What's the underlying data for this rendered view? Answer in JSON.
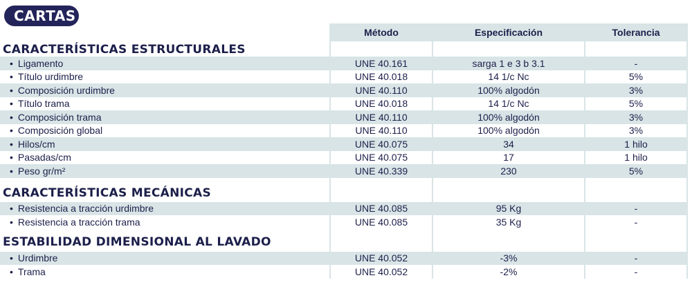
{
  "badge": "CARTAS",
  "headers": {
    "metodo": "Método",
    "especificacion": "Especificación",
    "tolerancia": "Tolerancia"
  },
  "sections": [
    {
      "title": "CARACTERÍSTICAS ESTRUCTURALES",
      "rows": [
        {
          "label": "Ligamento",
          "metodo": "UNE 40.161",
          "especificacion": "sarga 1 e 3 b 3.1",
          "tolerancia": "-"
        },
        {
          "label": "Título urdimbre",
          "metodo": "UNE 40.018",
          "especificacion": "14 1/c Nc",
          "tolerancia": "5%"
        },
        {
          "label": "Composición urdimbre",
          "metodo": "UNE 40.110",
          "especificacion": "100% algodón",
          "tolerancia": "3%"
        },
        {
          "label": "Título trama",
          "metodo": "UNE 40.018",
          "especificacion": "14 1/c Nc",
          "tolerancia": "5%"
        },
        {
          "label": "Composición trama",
          "metodo": "UNE 40.110",
          "especificacion": "100% algodón",
          "tolerancia": "3%"
        },
        {
          "label": "Composición global",
          "metodo": "UNE 40.110",
          "especificacion": "100% algodón",
          "tolerancia": "3%"
        },
        {
          "label": "Hilos/cm",
          "metodo": "UNE 40.075",
          "especificacion": "34",
          "tolerancia": "1 hilo"
        },
        {
          "label": "Pasadas/cm",
          "metodo": "UNE 40.075",
          "especificacion": "17",
          "tolerancia": "1 hilo"
        },
        {
          "label": "Peso gr/m²",
          "metodo": "UNE 40.339",
          "especificacion": "230",
          "tolerancia": "5%"
        }
      ]
    },
    {
      "title": "CARACTERÍSTICAS MECÁNICAS",
      "rows": [
        {
          "label": "Resistencia a tracción urdimbre",
          "metodo": "UNE 40.085",
          "especificacion": "95 Kg",
          "tolerancia": "-"
        },
        {
          "label": "Resistencia a tracción trama",
          "metodo": "UNE 40.085",
          "especificacion": "35 Kg",
          "tolerancia": "-"
        }
      ]
    },
    {
      "title": "ESTABILIDAD DIMENSIONAL AL LAVADO",
      "rows": [
        {
          "label": "Urdimbre",
          "metodo": "UNE 40.052",
          "especificacion": "-3%",
          "tolerancia": "-"
        },
        {
          "label": "Trama",
          "metodo": "UNE 40.052",
          "especificacion": "-2%",
          "tolerancia": "-"
        }
      ]
    }
  ]
}
